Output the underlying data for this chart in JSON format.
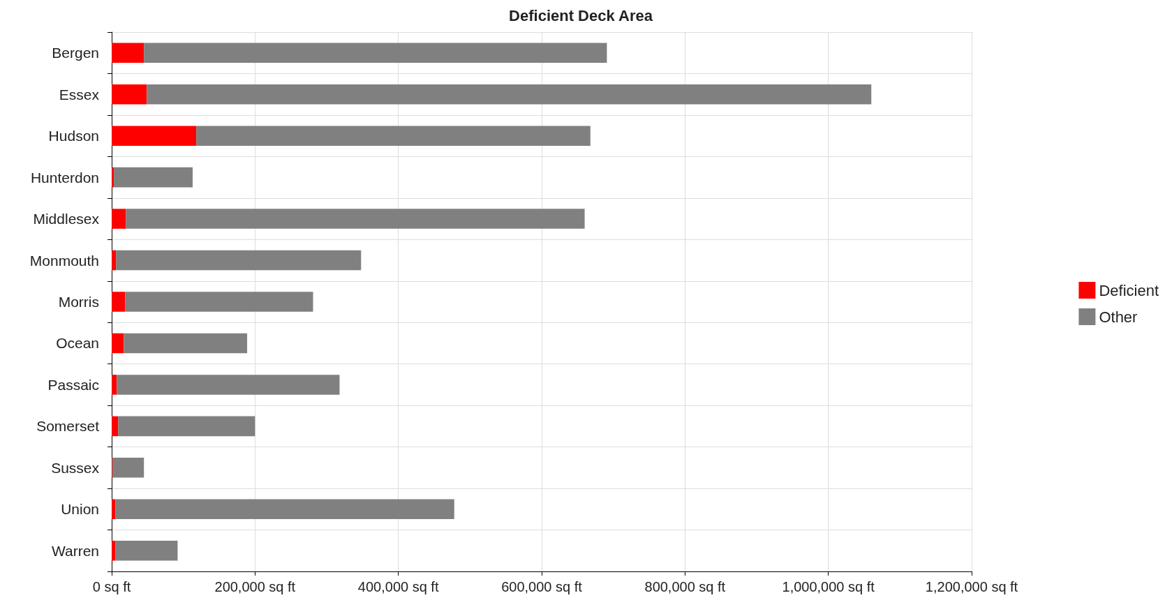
{
  "chart_data": {
    "type": "bar",
    "orientation": "horizontal",
    "stacked": true,
    "title": "Deficient Deck Area",
    "categories": [
      "Bergen",
      "Essex",
      "Hudson",
      "Hunterdon",
      "Middlesex",
      "Monmouth",
      "Morris",
      "Ocean",
      "Passaic",
      "Somerset",
      "Sussex",
      "Union",
      "Warren"
    ],
    "series": [
      {
        "name": "Deficient",
        "color": "#ff0000",
        "values": [
          45000,
          49000,
          118000,
          3000,
          20000,
          6000,
          19000,
          17000,
          7000,
          9000,
          1000,
          5000,
          5000
        ]
      },
      {
        "name": "Other",
        "color": "#808080",
        "values": [
          646000,
          1011000,
          550000,
          110000,
          640000,
          342000,
          262000,
          172000,
          311000,
          191000,
          44000,
          473000,
          87000
        ]
      }
    ],
    "xlim": [
      0,
      1200000
    ],
    "xticks": [
      {
        "value": 0,
        "label": "0 sq ft"
      },
      {
        "value": 200000,
        "label": "200,000 sq ft"
      },
      {
        "value": 400000,
        "label": "400,000 sq ft"
      },
      {
        "value": 600000,
        "label": "600,000 sq ft"
      },
      {
        "value": 800000,
        "label": "800,000 sq ft"
      },
      {
        "value": 1000000,
        "label": "1,000,000 sq ft"
      },
      {
        "value": 1200000,
        "label": "1,200,000 sq ft"
      }
    ],
    "grid": true,
    "legend": "right"
  }
}
